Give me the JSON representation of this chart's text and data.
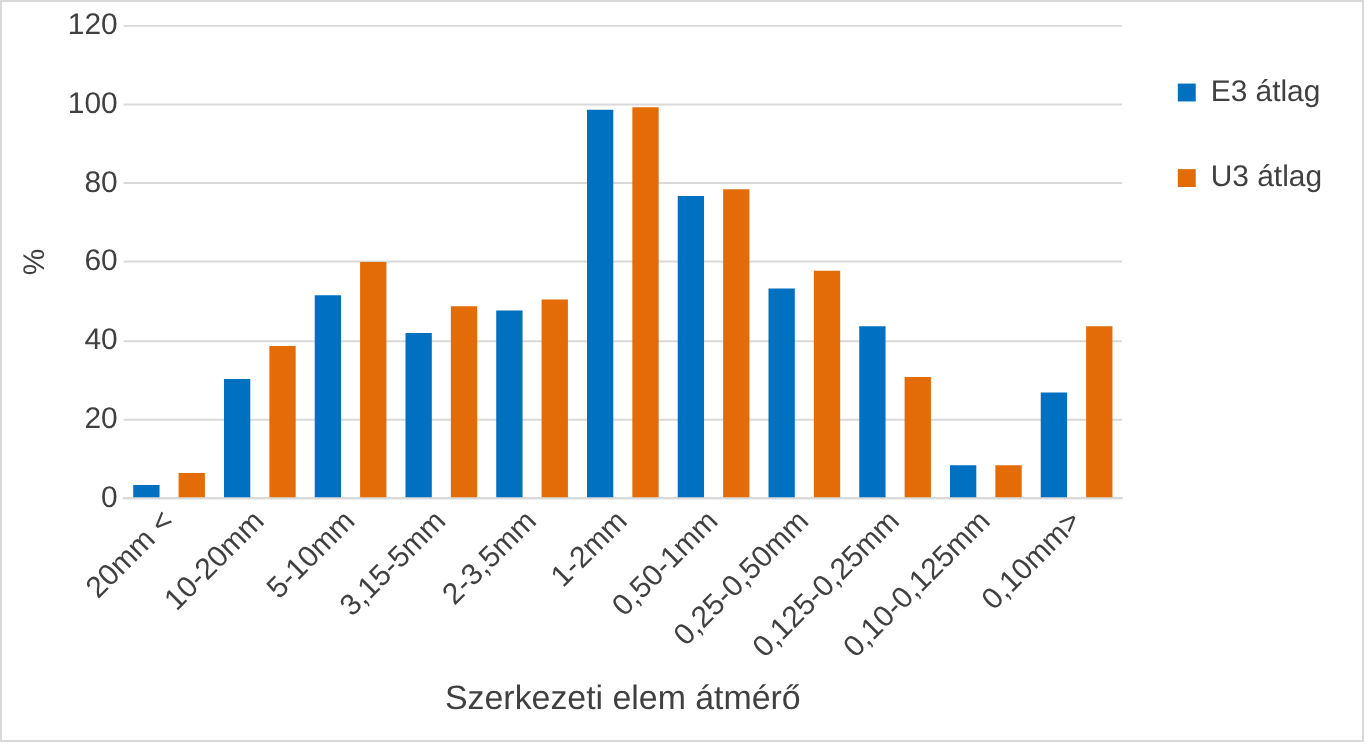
{
  "chart_data": {
    "type": "bar",
    "xlabel": "Szerkezeti elem átmérő",
    "ylabel": "%",
    "categories": [
      "20mm <",
      "10-20mm",
      "5-10mm",
      "3,15-5mm",
      "2-3,5mm",
      "1-2mm",
      "0,50-1mm",
      "0,25-0,50mm",
      "0,125-0,25mm",
      "0,10-0,125mm",
      "0,10mm>"
    ],
    "series": [
      {
        "name": "E3 átlag",
        "color": "#0070c0",
        "values": [
          3.4,
          30.3,
          51.6,
          42,
          47.7,
          98.7,
          76.8,
          53.3,
          43.7,
          8.4,
          26.9
        ]
      },
      {
        "name": "U3 átlag",
        "color": "#e36c09",
        "values": [
          6.4,
          38.7,
          60,
          48.8,
          50.5,
          99.3,
          78.5,
          57.8,
          30.8,
          8.4,
          43.7
        ]
      }
    ],
    "ylim": [
      0,
      120
    ],
    "yticks": [
      0,
      20,
      40,
      60,
      80,
      100,
      120
    ],
    "grid": "y",
    "legend": "top right"
  }
}
